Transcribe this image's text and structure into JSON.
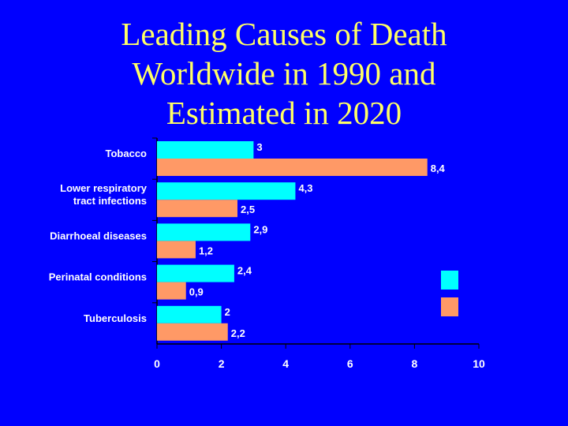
{
  "title_lines": [
    "Leading Causes of Death",
    "Worldwide in 1990 and",
    "Estimated in 2020"
  ],
  "colors": {
    "background": "#0000ff",
    "title": "#ffff66",
    "series_1990": "#00ffff",
    "series_2020": "#ff9966",
    "text": "#ffffff"
  },
  "chart_data": {
    "type": "bar",
    "orientation": "horizontal",
    "categories": [
      [
        "Tobacco"
      ],
      [
        "Lower respiratory",
        "tract infections"
      ],
      [
        "Diarrhoeal diseases"
      ],
      [
        "Perinatal conditions"
      ],
      [
        "Tuberculosis"
      ]
    ],
    "series": [
      {
        "values": [
          3,
          4.3,
          2.9,
          2.4,
          2
        ],
        "labels": [
          "3",
          "4,3",
          "2,9",
          "2,4",
          "2"
        ]
      },
      {
        "values": [
          8.4,
          2.5,
          1.2,
          0.9,
          2.2
        ],
        "labels": [
          "8,4",
          "2,5",
          "1,2",
          "0,9",
          "2,2"
        ]
      }
    ],
    "xlim": [
      0,
      10
    ],
    "xticks": [
      "0",
      "2",
      "4",
      "6",
      "8",
      "10"
    ],
    "legend": "right",
    "grid": false
  }
}
